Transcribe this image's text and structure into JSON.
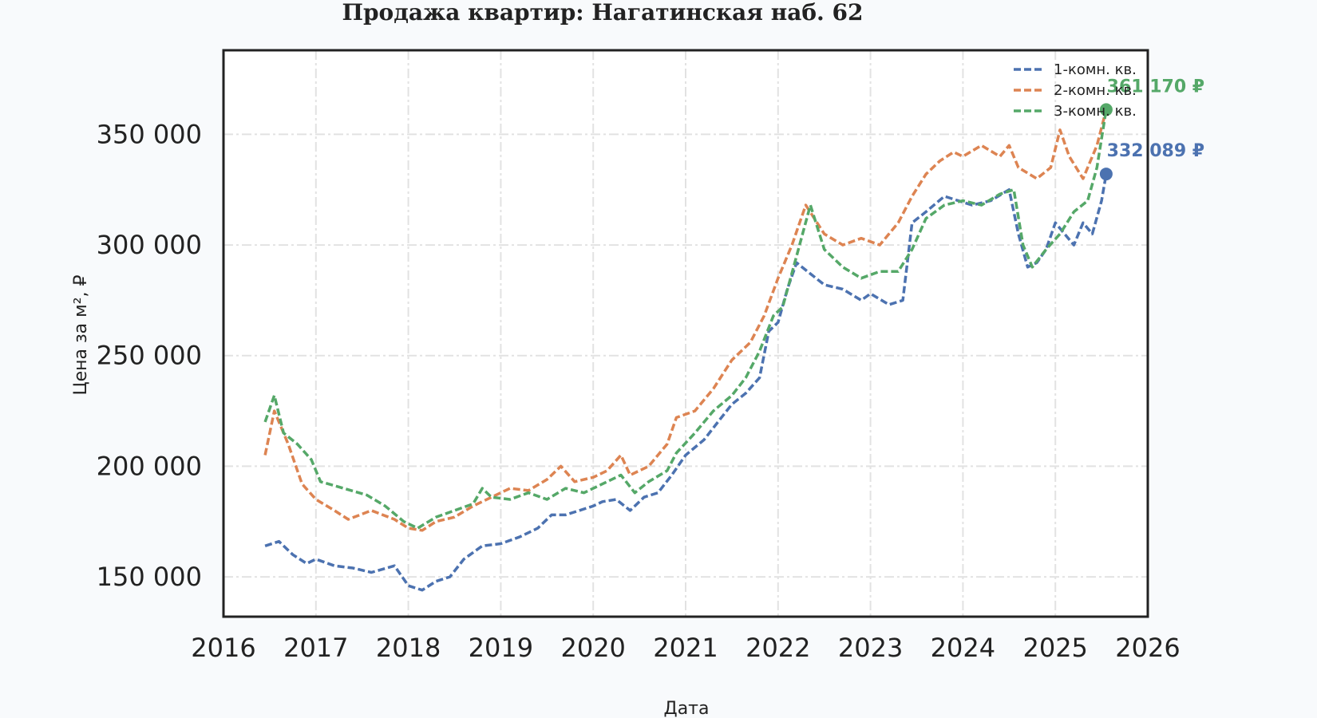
{
  "chart_data": {
    "type": "line",
    "title": "Продажа квартир: Нагатинская наб. 62",
    "xlabel": "Дата",
    "ylabel": "Цена за м², ₽",
    "xlim": [
      2016.0,
      2026.0
    ],
    "ylim": [
      132000,
      388000
    ],
    "x_ticks": [
      2016,
      2017,
      2018,
      2019,
      2020,
      2021,
      2022,
      2023,
      2024,
      2025,
      2026
    ],
    "y_ticks": [
      150000,
      200000,
      250000,
      300000,
      350000
    ],
    "y_tick_labels": [
      "150 000",
      "200 000",
      "250 000",
      "300 000",
      "350 000"
    ],
    "grid": true,
    "legend_position": "top-right",
    "line_style": "dashed",
    "series": [
      {
        "name": "1-комн. кв.",
        "color": "#4c72b0",
        "x": [
          2016.45,
          2016.6,
          2016.75,
          2016.9,
          2017.0,
          2017.2,
          2017.4,
          2017.6,
          2017.85,
          2018.0,
          2018.15,
          2018.3,
          2018.45,
          2018.6,
          2018.8,
          2019.0,
          2019.2,
          2019.4,
          2019.55,
          2019.7,
          2019.85,
          2020.0,
          2020.1,
          2020.25,
          2020.4,
          2020.55,
          2020.7,
          2020.85,
          2021.0,
          2021.2,
          2021.35,
          2021.5,
          2021.65,
          2021.8,
          2021.9,
          2022.0,
          2022.1,
          2022.2,
          2022.35,
          2022.5,
          2022.7,
          2022.9,
          2023.0,
          2023.2,
          2023.35,
          2023.45,
          2023.6,
          2023.8,
          2023.95,
          2024.1,
          2024.3,
          2024.5,
          2024.6,
          2024.7,
          2024.8,
          2024.9,
          2025.0,
          2025.1,
          2025.2,
          2025.3,
          2025.4,
          2025.5,
          2025.55
        ],
        "y": [
          164000,
          166000,
          160000,
          156000,
          158000,
          155000,
          154000,
          152000,
          155000,
          146000,
          144000,
          148000,
          150000,
          158000,
          164000,
          165000,
          168000,
          172000,
          178000,
          178000,
          180000,
          182000,
          184000,
          185000,
          180000,
          186000,
          188000,
          196000,
          205000,
          212000,
          220000,
          228000,
          233000,
          240000,
          261000,
          265000,
          280000,
          292000,
          287000,
          282000,
          280000,
          275000,
          278000,
          273000,
          275000,
          310000,
          315000,
          322000,
          320000,
          318000,
          320000,
          325000,
          305000,
          290000,
          292000,
          298000,
          310000,
          305000,
          300000,
          310000,
          305000,
          320000,
          332089
        ]
      },
      {
        "name": "2-комн. кв.",
        "color": "#dd8452",
        "x": [
          2016.45,
          2016.55,
          2016.7,
          2016.85,
          2017.0,
          2017.2,
          2017.35,
          2017.6,
          2017.85,
          2018.0,
          2018.15,
          2018.3,
          2018.5,
          2018.7,
          2018.9,
          2019.1,
          2019.3,
          2019.5,
          2019.65,
          2019.8,
          2020.0,
          2020.15,
          2020.3,
          2020.4,
          2020.6,
          2020.8,
          2020.9,
          2021.1,
          2021.3,
          2021.5,
          2021.7,
          2021.85,
          2022.0,
          2022.15,
          2022.3,
          2022.5,
          2022.7,
          2022.9,
          2023.1,
          2023.3,
          2023.45,
          2023.6,
          2023.75,
          2023.9,
          2024.0,
          2024.2,
          2024.4,
          2024.5,
          2024.6,
          2024.8,
          2024.95,
          2025.05,
          2025.15,
          2025.3,
          2025.45,
          2025.55
        ],
        "y": [
          205000,
          225000,
          210000,
          192000,
          185000,
          180000,
          176000,
          180000,
          176000,
          172000,
          171000,
          175000,
          177000,
          182000,
          186000,
          190000,
          189000,
          194000,
          200000,
          193000,
          195000,
          198000,
          205000,
          196000,
          200000,
          210000,
          222000,
          225000,
          235000,
          248000,
          256000,
          268000,
          285000,
          300000,
          318000,
          305000,
          300000,
          303000,
          300000,
          310000,
          322000,
          332000,
          338000,
          342000,
          340000,
          345000,
          340000,
          345000,
          335000,
          330000,
          335000,
          352000,
          340000,
          330000,
          345000,
          361170
        ]
      },
      {
        "name": "3-комн. кв.",
        "color": "#55a868",
        "x": [
          2016.45,
          2016.55,
          2016.65,
          2016.8,
          2016.95,
          2017.05,
          2017.3,
          2017.55,
          2017.75,
          2017.95,
          2018.1,
          2018.3,
          2018.5,
          2018.7,
          2018.8,
          2018.9,
          2019.1,
          2019.3,
          2019.5,
          2019.7,
          2019.9,
          2020.1,
          2020.3,
          2020.45,
          2020.6,
          2020.8,
          2020.9,
          2021.1,
          2021.3,
          2021.5,
          2021.65,
          2021.8,
          2021.95,
          2022.05,
          2022.2,
          2022.35,
          2022.5,
          2022.7,
          2022.9,
          2023.1,
          2023.3,
          2023.45,
          2023.6,
          2023.8,
          2024.0,
          2024.2,
          2024.4,
          2024.55,
          2024.65,
          2024.75,
          2024.9,
          2025.05,
          2025.2,
          2025.35,
          2025.45,
          2025.55
        ],
        "y": [
          220000,
          232000,
          215000,
          210000,
          203000,
          193000,
          190000,
          187000,
          182000,
          175000,
          172000,
          177000,
          180000,
          183000,
          190000,
          186000,
          185000,
          188000,
          185000,
          190000,
          188000,
          192000,
          196000,
          188000,
          193000,
          198000,
          206000,
          215000,
          225000,
          232000,
          240000,
          252000,
          268000,
          272000,
          295000,
          318000,
          298000,
          290000,
          285000,
          288000,
          288000,
          298000,
          312000,
          318000,
          320000,
          318000,
          323000,
          325000,
          300000,
          290000,
          298000,
          305000,
          315000,
          320000,
          335000,
          361170
        ]
      }
    ],
    "annotations": [
      {
        "text": "361 170 ₽",
        "x": 2025.55,
        "y": 361170,
        "color": "#55a868"
      },
      {
        "text": "332 089 ₽",
        "x": 2025.55,
        "y": 332089,
        "color": "#4c72b0"
      }
    ]
  }
}
